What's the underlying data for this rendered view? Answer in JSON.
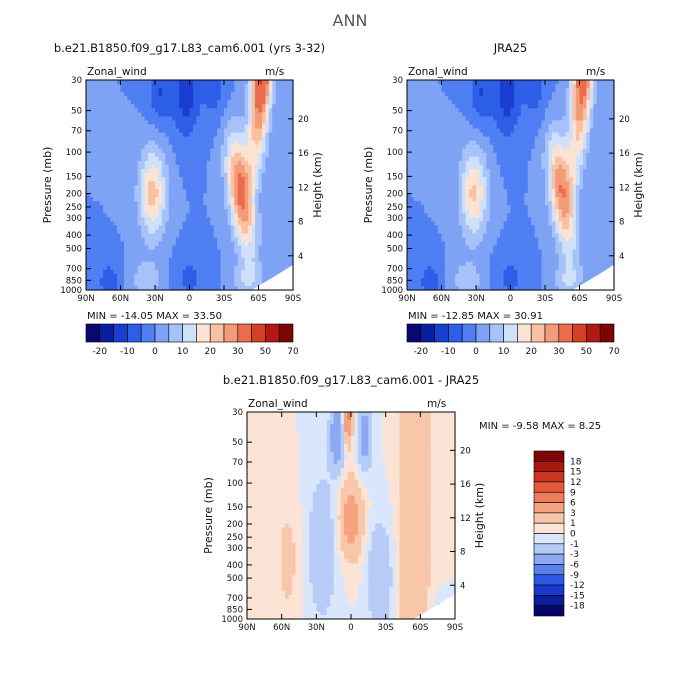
{
  "page": {
    "season": "ANN"
  },
  "colors": {
    "standard": [
      "#08086f",
      "#0a1fa0",
      "#1a3fd0",
      "#2c5ee8",
      "#4f7ff2",
      "#7ea3f5",
      "#a6c2f8",
      "#cfe0fb",
      "#fbe3d4",
      "#f8c1a4",
      "#f39a78",
      "#ea6c4c",
      "#d43f25",
      "#b31812",
      "#7a0703"
    ],
    "diff": [
      "#060669",
      "#0c1c9b",
      "#1839cc",
      "#2c58e6",
      "#5a80ee",
      "#8ca8f3",
      "#b6cbf6",
      "#d9e6fb",
      "#fbe4d5",
      "#f8c6a8",
      "#f5a27e",
      "#ee7c59",
      "#e3593a",
      "#cb3522",
      "#a81710",
      "#7c0704"
    ]
  },
  "chart_data": [
    {
      "type": "heatmap",
      "title": "b.e21.B1850.f09_g17.L83_cam6.001 (yrs 3-32)",
      "field_label": "Zonal_wind",
      "units_label": "m/s",
      "ylabel": "Pressure (mb)",
      "y2label": "Height (km)",
      "x_ticks": [
        "90N",
        "60N",
        "30N",
        "0",
        "30S",
        "60S",
        "90S"
      ],
      "y_ticks": [
        "30",
        "50",
        "70",
        "100",
        "150",
        "200",
        "250",
        "300",
        "400",
        "500",
        "700",
        "850",
        "1000"
      ],
      "y2_ticks": [
        "20",
        "16",
        "12",
        "8",
        "4"
      ],
      "stats": "MIN = -14.05   MAX =  33.50",
      "levels": [
        "-20",
        "-10",
        "0",
        "10",
        "20",
        "30",
        "50",
        "70"
      ],
      "min": -14.05,
      "max": 33.5,
      "jets": {
        "nh_peak": 22,
        "sh_peak": 33
      }
    },
    {
      "type": "heatmap",
      "title": "JRA25",
      "field_label": "Zonal_wind",
      "units_label": "m/s",
      "ylabel": "Pressure (mb)",
      "y2label": "Height (km)",
      "x_ticks": [
        "90N",
        "60N",
        "30N",
        "0",
        "30S",
        "60S",
        "90S"
      ],
      "y_ticks": [
        "30",
        "50",
        "70",
        "100",
        "150",
        "200",
        "250",
        "300",
        "400",
        "500",
        "700",
        "850",
        "1000"
      ],
      "y2_ticks": [
        "20",
        "16",
        "12",
        "8",
        "4"
      ],
      "stats": "MIN = -12.85   MAX =  30.91",
      "levels": [
        "-20",
        "-10",
        "0",
        "10",
        "20",
        "30",
        "50",
        "70"
      ],
      "min": -12.85,
      "max": 30.91,
      "jets": {
        "nh_peak": 21,
        "sh_peak": 30
      }
    },
    {
      "type": "heatmap",
      "title": "b.e21.B1850.f09_g17.L83_cam6.001 - JRA25",
      "field_label": "Zonal_wind",
      "units_label": "m/s",
      "ylabel": "Pressure (mb)",
      "y2label": "Height (km)",
      "x_ticks": [
        "90N",
        "60N",
        "30N",
        "0",
        "30S",
        "60S",
        "90S"
      ],
      "y_ticks": [
        "30",
        "50",
        "70",
        "100",
        "150",
        "200",
        "250",
        "300",
        "400",
        "500",
        "700",
        "850",
        "1000"
      ],
      "y2_ticks": [
        "20",
        "16",
        "12",
        "8",
        "4"
      ],
      "stats": "MIN =   -9.58   MAX =     8.25",
      "levels": [
        "18",
        "15",
        "12",
        "9",
        "6",
        "3",
        "1",
        "0",
        "-1",
        "-3",
        "-6",
        "-9",
        "-12",
        "-15",
        "-18"
      ],
      "min": -9.58,
      "max": 8.25
    }
  ]
}
